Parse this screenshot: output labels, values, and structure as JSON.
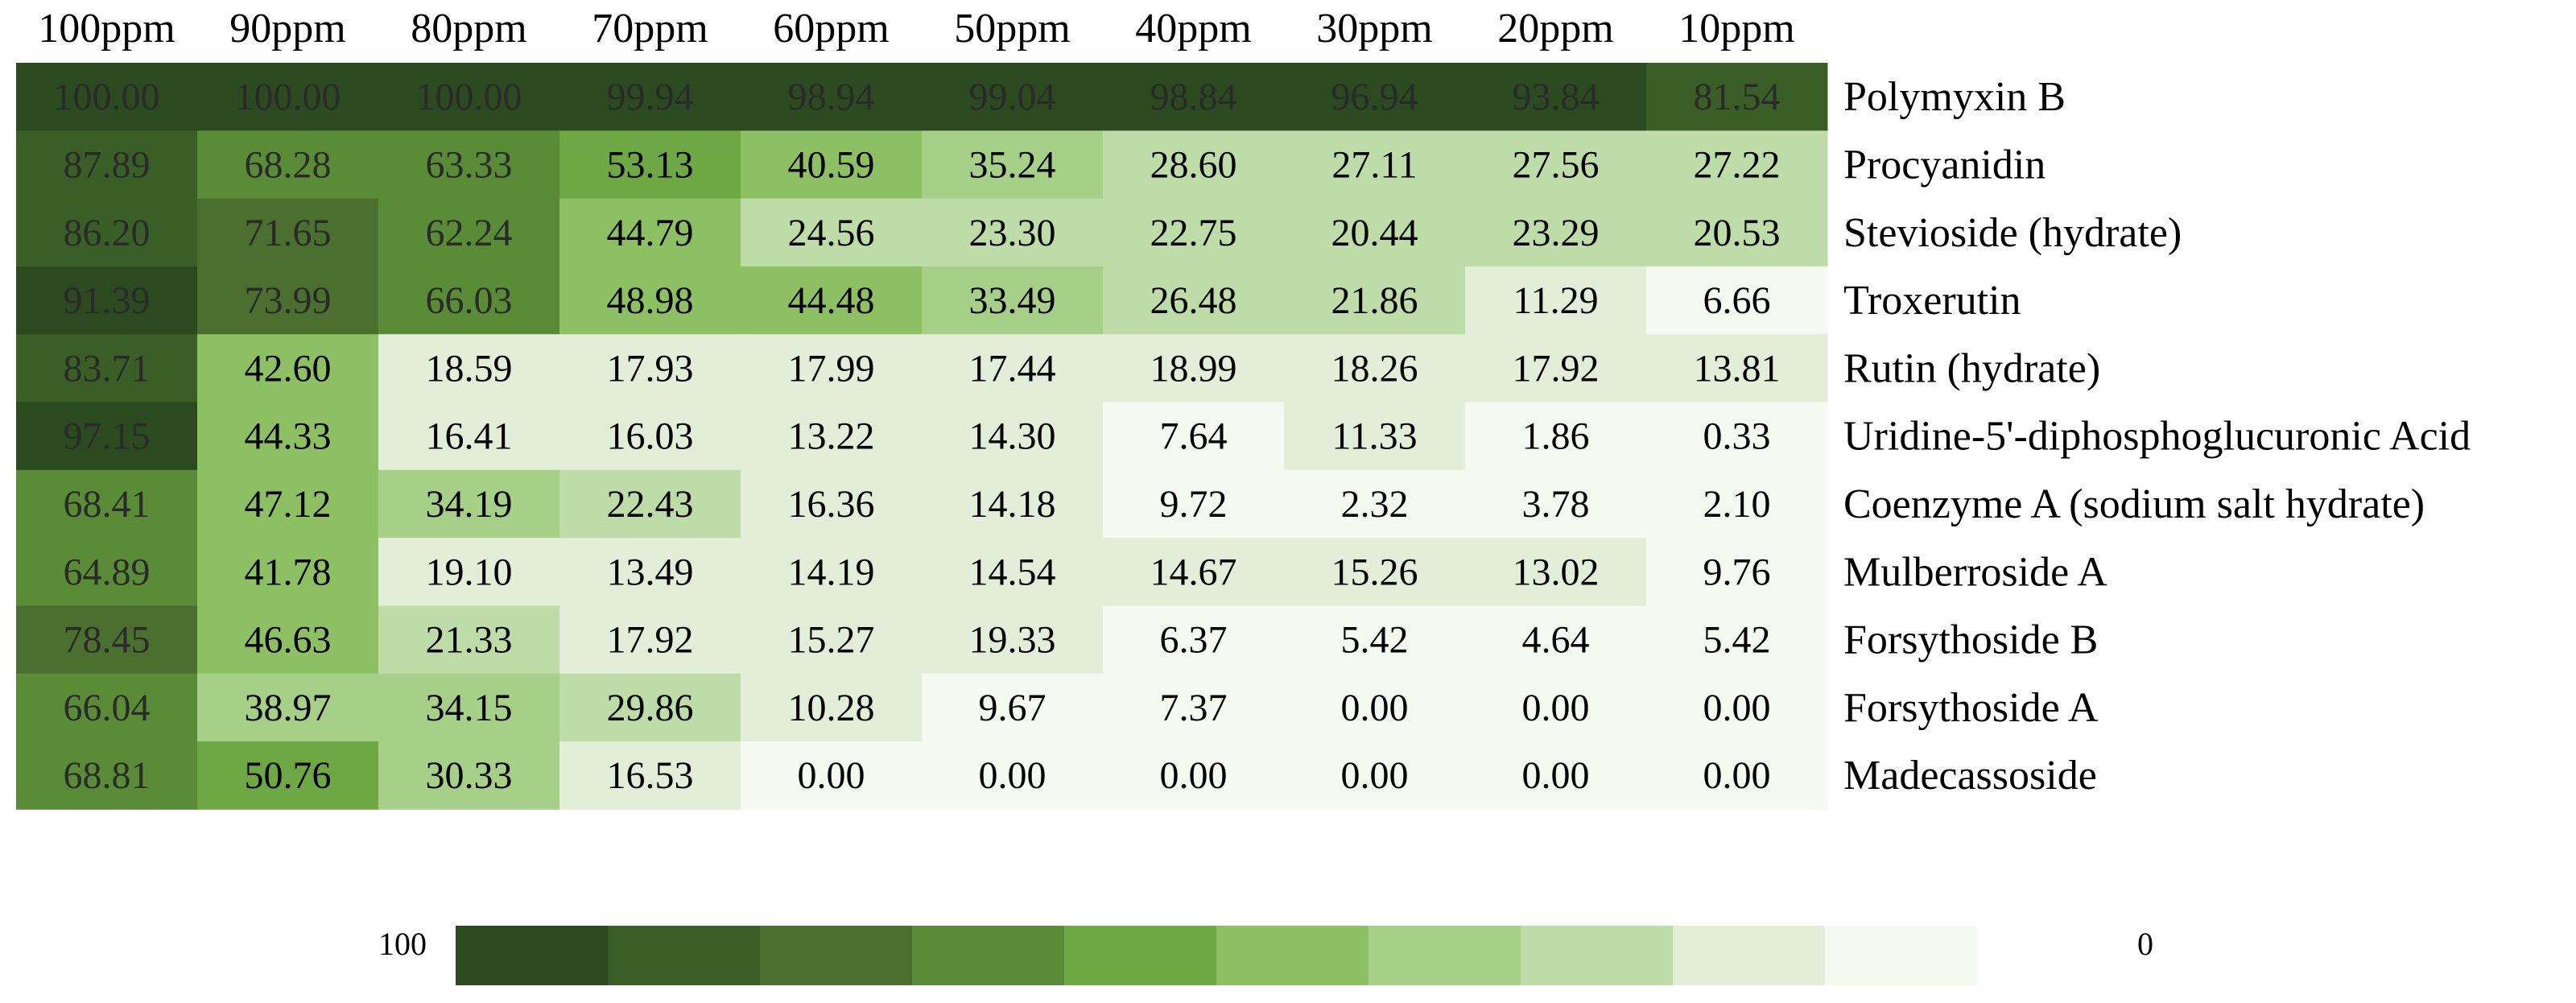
{
  "chart_data": {
    "type": "heatmap",
    "columns": [
      "100ppm",
      "90ppm",
      "80ppm",
      "70ppm",
      "60ppm",
      "50ppm",
      "40ppm",
      "30ppm",
      "20ppm",
      "10ppm"
    ],
    "rows": [
      "Polymyxin B",
      "Procyanidin",
      "Stevioside (hydrate)",
      "Troxerutin",
      "Rutin (hydrate)",
      "Uridine-5'-diphosphoglucuronic Acid",
      "Coenzyme A (sodium salt hydrate)",
      "Mulberroside A",
      "Forsythoside B",
      "Forsythoside A",
      "Madecassoside"
    ],
    "values": [
      [
        "100.00",
        "100.00",
        "100.00",
        "99.94",
        "98.94",
        "99.04",
        "98.84",
        "96.94",
        "93.84",
        "81.54"
      ],
      [
        "87.89",
        "68.28",
        "63.33",
        "53.13",
        "40.59",
        "35.24",
        "28.60",
        "27.11",
        "27.56",
        "27.22"
      ],
      [
        "86.20",
        "71.65",
        "62.24",
        "44.79",
        "24.56",
        "23.30",
        "22.75",
        "20.44",
        "23.29",
        "20.53"
      ],
      [
        "91.39",
        "73.99",
        "66.03",
        "48.98",
        "44.48",
        "33.49",
        "26.48",
        "21.86",
        "11.29",
        "6.66"
      ],
      [
        "83.71",
        "42.60",
        "18.59",
        "17.93",
        "17.99",
        "17.44",
        "18.99",
        "18.26",
        "17.92",
        "13.81"
      ],
      [
        "97.15",
        "44.33",
        "16.41",
        "16.03",
        "13.22",
        "14.30",
        "7.64",
        "11.33",
        "1.86",
        "0.33"
      ],
      [
        "68.41",
        "47.12",
        "34.19",
        "22.43",
        "16.36",
        "14.18",
        "9.72",
        "2.32",
        "3.78",
        "2.10"
      ],
      [
        "64.89",
        "41.78",
        "19.10",
        "13.49",
        "14.19",
        "14.54",
        "14.67",
        "15.26",
        "13.02",
        "9.76"
      ],
      [
        "78.45",
        "46.63",
        "21.33",
        "17.92",
        "15.27",
        "19.33",
        "6.37",
        "5.42",
        "4.64",
        "5.42"
      ],
      [
        "66.04",
        "38.97",
        "34.15",
        "29.86",
        "10.28",
        "9.67",
        "7.37",
        "0.00",
        "0.00",
        "0.00"
      ],
      [
        "68.81",
        "50.76",
        "30.33",
        "16.53",
        "0.00",
        "0.00",
        "0.00",
        "0.00",
        "0.00",
        "0.00"
      ]
    ],
    "color_scale": {
      "max_label": "100",
      "min_label": "0",
      "colors": [
        "#2b4a1f",
        "#3a5f26",
        "#4a6f2e",
        "#5a8c38",
        "#6ea845",
        "#8cc063",
        "#a6cf88",
        "#bedca8",
        "#e3eed9",
        "#f5faf0"
      ]
    }
  }
}
